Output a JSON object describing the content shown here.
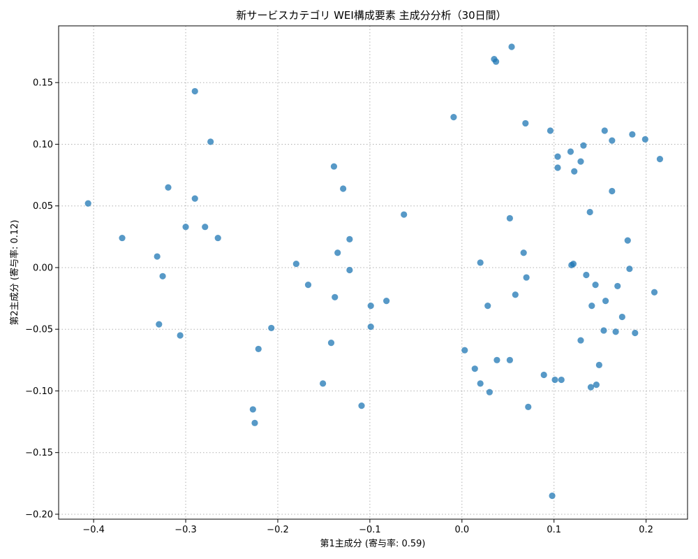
{
  "chart_data": {
    "type": "scatter",
    "title": "新サービスカテゴリ WEI構成要素 主成分分析（30日間）",
    "xlabel": "第1主成分 (寄与率: 0.59)",
    "ylabel": "第2主成分 (寄与率: 0.12)",
    "xlim": [
      -0.438,
      0.245
    ],
    "ylim": [
      -0.204,
      0.196
    ],
    "xticks": [
      -0.4,
      -0.3,
      -0.2,
      -0.1,
      0.0,
      0.1,
      0.2
    ],
    "yticks": [
      -0.2,
      -0.15,
      -0.1,
      -0.05,
      0.0,
      0.05,
      0.1,
      0.15
    ],
    "xtick_labels": [
      "−0.4",
      "−0.3",
      "−0.2",
      "−0.1",
      "0.0",
      "0.1",
      "0.2"
    ],
    "ytick_labels": [
      "−0.20",
      "−0.15",
      "−0.10",
      "−0.05",
      "0.00",
      "0.05",
      "0.10",
      "0.15"
    ],
    "grid": true,
    "point_color": "#1f77b4",
    "points": [
      {
        "x": -0.406,
        "y": 0.052
      },
      {
        "x": -0.369,
        "y": 0.024
      },
      {
        "x": -0.331,
        "y": 0.009
      },
      {
        "x": -0.325,
        "y": -0.007
      },
      {
        "x": -0.329,
        "y": -0.046
      },
      {
        "x": -0.319,
        "y": 0.065
      },
      {
        "x": -0.306,
        "y": -0.055
      },
      {
        "x": -0.3,
        "y": 0.033
      },
      {
        "x": -0.29,
        "y": 0.143
      },
      {
        "x": -0.29,
        "y": 0.056
      },
      {
        "x": -0.279,
        "y": 0.033
      },
      {
        "x": -0.273,
        "y": 0.102
      },
      {
        "x": -0.265,
        "y": 0.024
      },
      {
        "x": -0.227,
        "y": -0.115
      },
      {
        "x": -0.225,
        "y": -0.126
      },
      {
        "x": -0.221,
        "y": -0.066
      },
      {
        "x": -0.207,
        "y": -0.049
      },
      {
        "x": -0.18,
        "y": 0.003
      },
      {
        "x": -0.167,
        "y": -0.014
      },
      {
        "x": -0.151,
        "y": -0.094
      },
      {
        "x": -0.142,
        "y": -0.061
      },
      {
        "x": -0.139,
        "y": 0.082
      },
      {
        "x": -0.138,
        "y": -0.024
      },
      {
        "x": -0.135,
        "y": 0.012
      },
      {
        "x": -0.129,
        "y": 0.064
      },
      {
        "x": -0.122,
        "y": 0.023
      },
      {
        "x": -0.122,
        "y": -0.002
      },
      {
        "x": -0.109,
        "y": -0.112
      },
      {
        "x": -0.099,
        "y": -0.031
      },
      {
        "x": -0.099,
        "y": -0.048
      },
      {
        "x": -0.082,
        "y": -0.027
      },
      {
        "x": -0.063,
        "y": 0.043
      },
      {
        "x": -0.009,
        "y": 0.122
      },
      {
        "x": 0.003,
        "y": -0.067
      },
      {
        "x": 0.014,
        "y": -0.082
      },
      {
        "x": 0.02,
        "y": 0.004
      },
      {
        "x": 0.02,
        "y": -0.094
      },
      {
        "x": 0.028,
        "y": -0.031
      },
      {
        "x": 0.03,
        "y": -0.101
      },
      {
        "x": 0.035,
        "y": 0.169
      },
      {
        "x": 0.037,
        "y": 0.167
      },
      {
        "x": 0.038,
        "y": -0.075
      },
      {
        "x": 0.052,
        "y": 0.04
      },
      {
        "x": 0.052,
        "y": -0.075
      },
      {
        "x": 0.054,
        "y": 0.179
      },
      {
        "x": 0.058,
        "y": -0.022
      },
      {
        "x": 0.067,
        "y": 0.012
      },
      {
        "x": 0.069,
        "y": 0.117
      },
      {
        "x": 0.07,
        "y": -0.008
      },
      {
        "x": 0.072,
        "y": -0.113
      },
      {
        "x": 0.089,
        "y": -0.087
      },
      {
        "x": 0.096,
        "y": 0.111
      },
      {
        "x": 0.098,
        "y": -0.185
      },
      {
        "x": 0.101,
        "y": -0.091
      },
      {
        "x": 0.104,
        "y": 0.09
      },
      {
        "x": 0.104,
        "y": 0.081
      },
      {
        "x": 0.108,
        "y": -0.091
      },
      {
        "x": 0.118,
        "y": 0.094
      },
      {
        "x": 0.119,
        "y": 0.002
      },
      {
        "x": 0.121,
        "y": 0.003
      },
      {
        "x": 0.122,
        "y": 0.078
      },
      {
        "x": 0.129,
        "y": 0.086
      },
      {
        "x": 0.129,
        "y": -0.059
      },
      {
        "x": 0.132,
        "y": 0.099
      },
      {
        "x": 0.135,
        "y": -0.006
      },
      {
        "x": 0.139,
        "y": 0.045
      },
      {
        "x": 0.14,
        "y": -0.097
      },
      {
        "x": 0.141,
        "y": -0.031
      },
      {
        "x": 0.145,
        "y": -0.014
      },
      {
        "x": 0.146,
        "y": -0.095
      },
      {
        "x": 0.149,
        "y": -0.079
      },
      {
        "x": 0.154,
        "y": -0.051
      },
      {
        "x": 0.155,
        "y": 0.111
      },
      {
        "x": 0.156,
        "y": -0.027
      },
      {
        "x": 0.163,
        "y": 0.103
      },
      {
        "x": 0.163,
        "y": 0.062
      },
      {
        "x": 0.167,
        "y": -0.052
      },
      {
        "x": 0.169,
        "y": -0.015
      },
      {
        "x": 0.174,
        "y": -0.04
      },
      {
        "x": 0.18,
        "y": 0.022
      },
      {
        "x": 0.182,
        "y": -0.001
      },
      {
        "x": 0.185,
        "y": 0.108
      },
      {
        "x": 0.188,
        "y": -0.053
      },
      {
        "x": 0.199,
        "y": 0.104
      },
      {
        "x": 0.209,
        "y": -0.02
      },
      {
        "x": 0.215,
        "y": 0.088
      }
    ]
  }
}
